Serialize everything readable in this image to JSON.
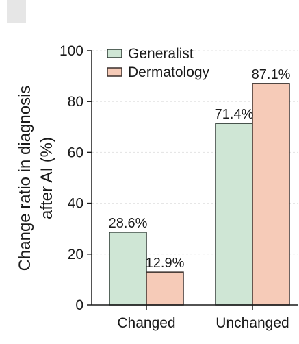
{
  "chart_data": {
    "type": "bar",
    "categories": [
      "Changed",
      "Unchanged"
    ],
    "series": [
      {
        "name": "Generalist",
        "values": [
          28.6,
          71.4
        ],
        "color": "#cfe6d5",
        "stroke": "#2f3a34"
      },
      {
        "name": "Dermatology",
        "values": [
          12.9,
          87.1
        ],
        "color": "#f6cbb8",
        "stroke": "#3a2f2b"
      }
    ],
    "data_labels": [
      [
        "28.6%",
        "71.4%"
      ],
      [
        "12.9%",
        "87.1%"
      ]
    ],
    "ylabel_line1": "Change ratio in diagnosis",
    "ylabel_line2": "after AI (%)",
    "xlabel": "",
    "ylim": [
      0,
      100
    ],
    "yticks": [
      0,
      20,
      40,
      60,
      80,
      100
    ],
    "grid": true,
    "legend": "top-left"
  }
}
